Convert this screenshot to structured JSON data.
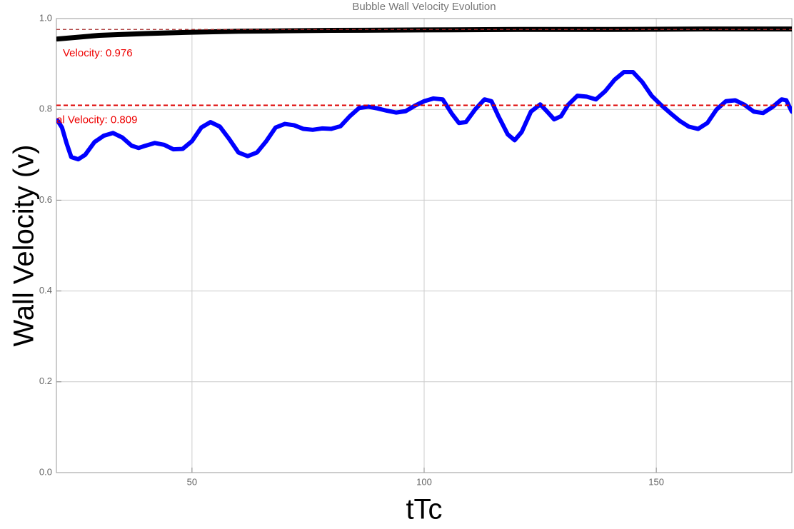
{
  "chart_data": {
    "type": "line",
    "title": "Bubble Wall Velocity Evolution",
    "xlabel": "tTc",
    "ylabel": "Wall Velocity (v)",
    "xlim": [
      20.8,
      179.2
    ],
    "ylim": [
      0,
      1
    ],
    "xticks": [
      50,
      100,
      150
    ],
    "yticks": [
      {
        "value": 0,
        "label": "0.0"
      },
      0.2,
      0.4,
      0.6,
      0.8,
      {
        "value": 1,
        "label": "1.0"
      }
    ],
    "grid": true,
    "series": [
      {
        "color": "#000000",
        "x": [
          21,
          30,
          40,
          50,
          60,
          70,
          80,
          100,
          120,
          140,
          160,
          179.2
        ],
        "values": [
          0.955,
          0.963,
          0.967,
          0.97,
          0.972,
          0.973,
          0.974,
          0.975,
          0.976,
          0.976,
          0.977,
          0.977
        ]
      },
      {
        "color": "#0000ff",
        "x": [
          21,
          22,
          23,
          24,
          25.5,
          27,
          29,
          31,
          33,
          35,
          37,
          38.5,
          40,
          42,
          44,
          46,
          48,
          50,
          52,
          54,
          56,
          58,
          60,
          62,
          64,
          66,
          68,
          70,
          72,
          74,
          76,
          78,
          80,
          82,
          84,
          86,
          88,
          90,
          92,
          94,
          96,
          98,
          100,
          102,
          104,
          106,
          107.5,
          109,
          111,
          113,
          114.5,
          116,
          118,
          119.5,
          121,
          123,
          125,
          126.5,
          128,
          129.5,
          131,
          133,
          135,
          137,
          139,
          141,
          143,
          145,
          147,
          149,
          151,
          153,
          155,
          157,
          159,
          161,
          163,
          165,
          167,
          169,
          171,
          173,
          175,
          177,
          178,
          179.2
        ],
        "values": [
          0.776,
          0.76,
          0.725,
          0.695,
          0.69,
          0.7,
          0.728,
          0.742,
          0.748,
          0.738,
          0.72,
          0.715,
          0.72,
          0.726,
          0.722,
          0.712,
          0.713,
          0.73,
          0.76,
          0.772,
          0.762,
          0.735,
          0.705,
          0.697,
          0.705,
          0.73,
          0.76,
          0.768,
          0.765,
          0.757,
          0.755,
          0.758,
          0.757,
          0.763,
          0.785,
          0.803,
          0.806,
          0.802,
          0.797,
          0.793,
          0.796,
          0.808,
          0.818,
          0.824,
          0.822,
          0.79,
          0.77,
          0.772,
          0.8,
          0.822,
          0.818,
          0.785,
          0.745,
          0.732,
          0.75,
          0.795,
          0.811,
          0.795,
          0.778,
          0.785,
          0.81,
          0.83,
          0.828,
          0.822,
          0.84,
          0.865,
          0.882,
          0.882,
          0.86,
          0.83,
          0.81,
          0.792,
          0.775,
          0.762,
          0.757,
          0.77,
          0.8,
          0.818,
          0.82,
          0.81,
          0.795,
          0.792,
          0.805,
          0.822,
          0.82,
          0.795
        ]
      }
    ],
    "hlines": [
      {
        "value": 0.976,
        "color": "#a52a2a",
        "label": "Velocity: 0.976",
        "label_color": "#ee0000"
      },
      {
        "value": 0.809,
        "color": "#dd0000",
        "label": "al Velocity: 0.809",
        "label_color": "#ee0000"
      }
    ]
  }
}
